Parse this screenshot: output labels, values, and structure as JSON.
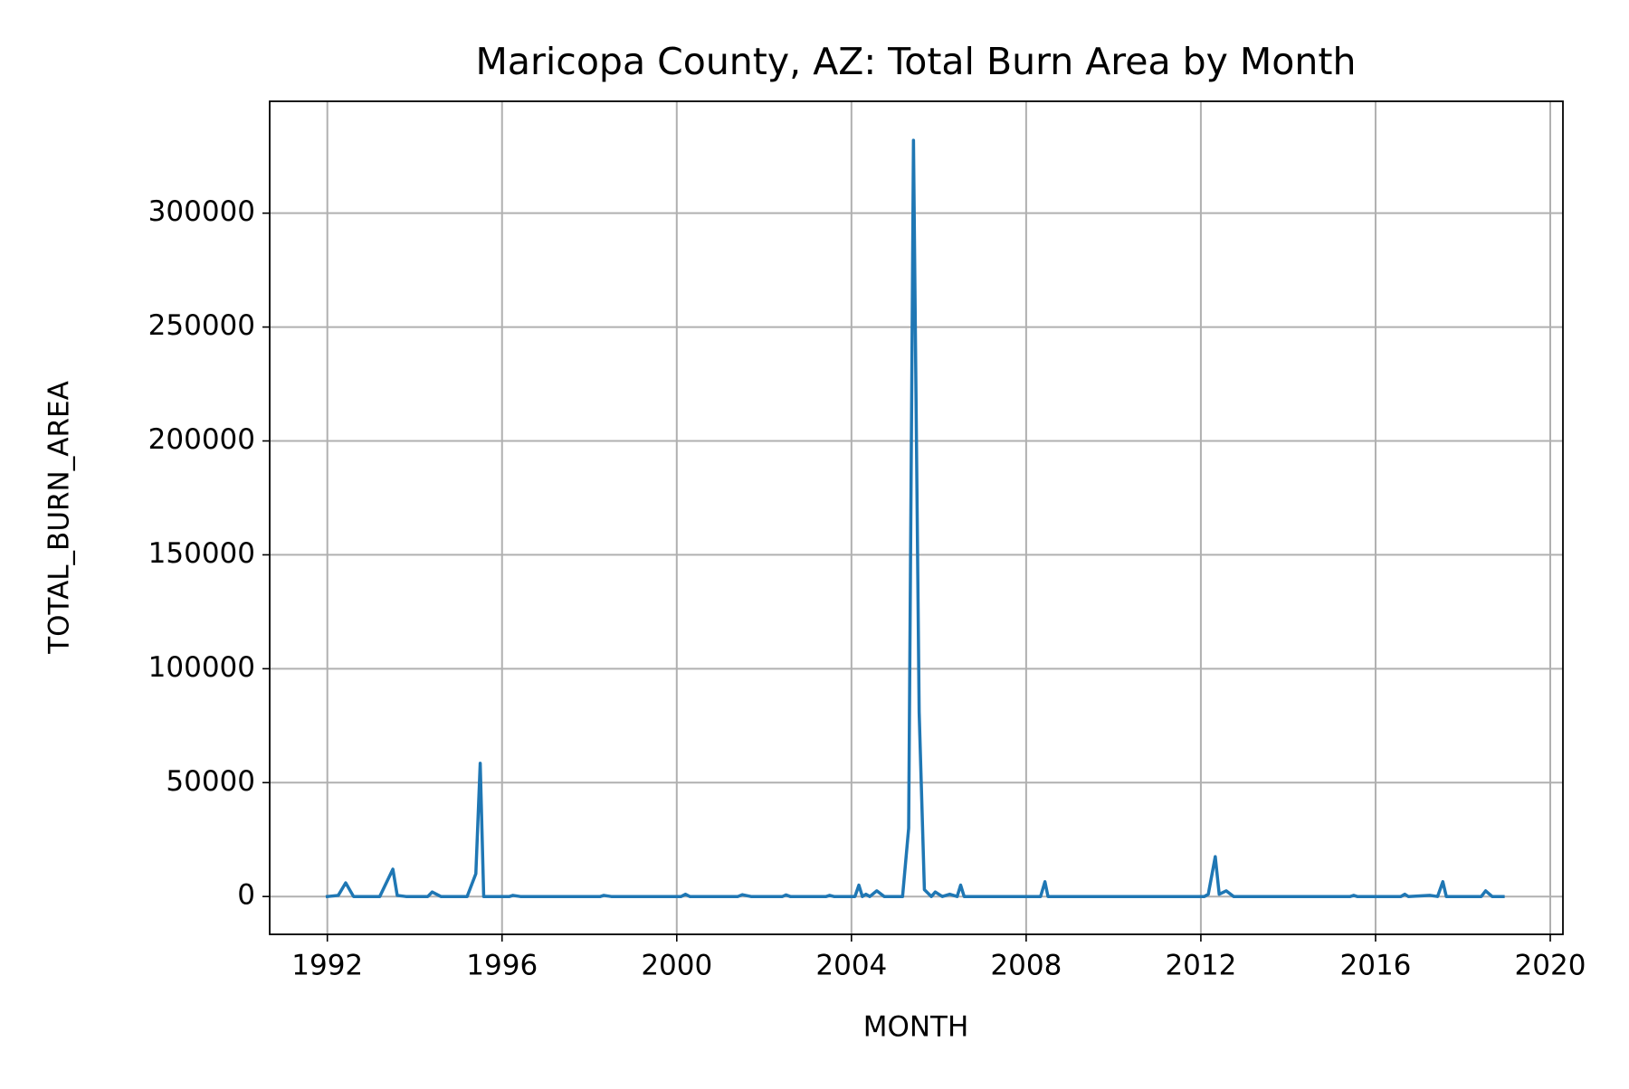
{
  "chart_data": {
    "type": "line",
    "title": "Maricopa County, AZ: Total Burn Area by Month",
    "xlabel": "MONTH",
    "ylabel": "TOTAL_BURN_AREA",
    "x": [
      1992.0,
      1992.25,
      1992.42,
      1992.6,
      1993.2,
      1993.5,
      1993.6,
      1993.8,
      1994.3,
      1994.4,
      1994.6,
      1995.2,
      1995.4,
      1995.5,
      1995.58,
      1996.17,
      1996.25,
      1996.42,
      1998.25,
      1998.33,
      1998.5,
      2000.1,
      2000.2,
      2000.3,
      2001.4,
      2001.5,
      2001.7,
      2002.42,
      2002.5,
      2002.6,
      2003.42,
      2003.5,
      2003.6,
      2004.08,
      2004.17,
      2004.25,
      2004.33,
      2004.42,
      2004.58,
      2004.75,
      2005.17,
      2005.31,
      2005.42,
      2005.55,
      2005.67,
      2005.83,
      2005.92,
      2006.08,
      2006.25,
      2006.42,
      2006.5,
      2006.58,
      2008.33,
      2008.43,
      2008.5,
      2012.08,
      2012.17,
      2012.33,
      2012.42,
      2012.58,
      2012.75,
      2015.42,
      2015.5,
      2015.58,
      2016.58,
      2016.67,
      2016.75,
      2017.25,
      2017.42,
      2017.54,
      2017.62,
      2018.42,
      2018.52,
      2018.67,
      2018.92
    ],
    "values": [
      0,
      500,
      6000,
      0,
      0,
      12000,
      500,
      0,
      0,
      2000,
      0,
      0,
      10000,
      58500,
      0,
      0,
      500,
      0,
      0,
      500,
      0,
      0,
      1000,
      0,
      0,
      800,
      0,
      0,
      700,
      0,
      0,
      500,
      0,
      0,
      5000,
      0,
      1000,
      0,
      2500,
      0,
      0,
      30000,
      332000,
      81000,
      3000,
      0,
      2000,
      0,
      1000,
      0,
      5000,
      0,
      0,
      6500,
      0,
      0,
      1000,
      17500,
      1000,
      2500,
      0,
      0,
      500,
      0,
      0,
      1000,
      0,
      500,
      0,
      6500,
      0,
      0,
      2500,
      0,
      0
    ],
    "color": "#1f77b4",
    "xlim": [
      1990.68,
      2020.29
    ],
    "xticks": [
      1992,
      1996,
      2000,
      2004,
      2008,
      2012,
      2016,
      2020
    ],
    "ylim": [
      -16600,
      349100
    ],
    "yticks": [
      0,
      50000,
      100000,
      150000,
      200000,
      250000,
      300000
    ],
    "grid": true
  }
}
